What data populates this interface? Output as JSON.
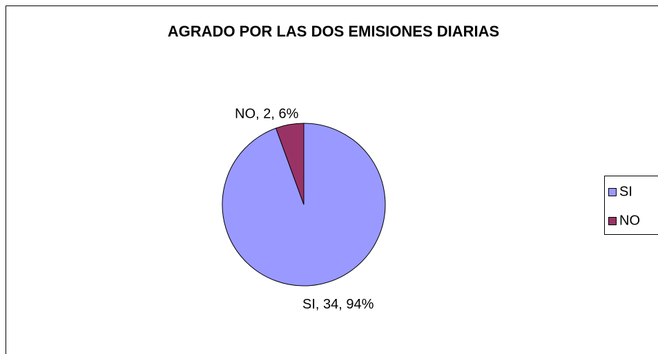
{
  "chart_data": {
    "type": "pie",
    "title": "AGRADO POR LAS DOS EMISIONES DIARIAS",
    "categories": [
      "SI",
      "NO"
    ],
    "values": [
      34,
      2
    ],
    "value_labels": [
      "SI, 34, 94%",
      "NO, 2, 6%"
    ],
    "colors": [
      "#9999ff",
      "#993366"
    ],
    "legend": "right"
  }
}
